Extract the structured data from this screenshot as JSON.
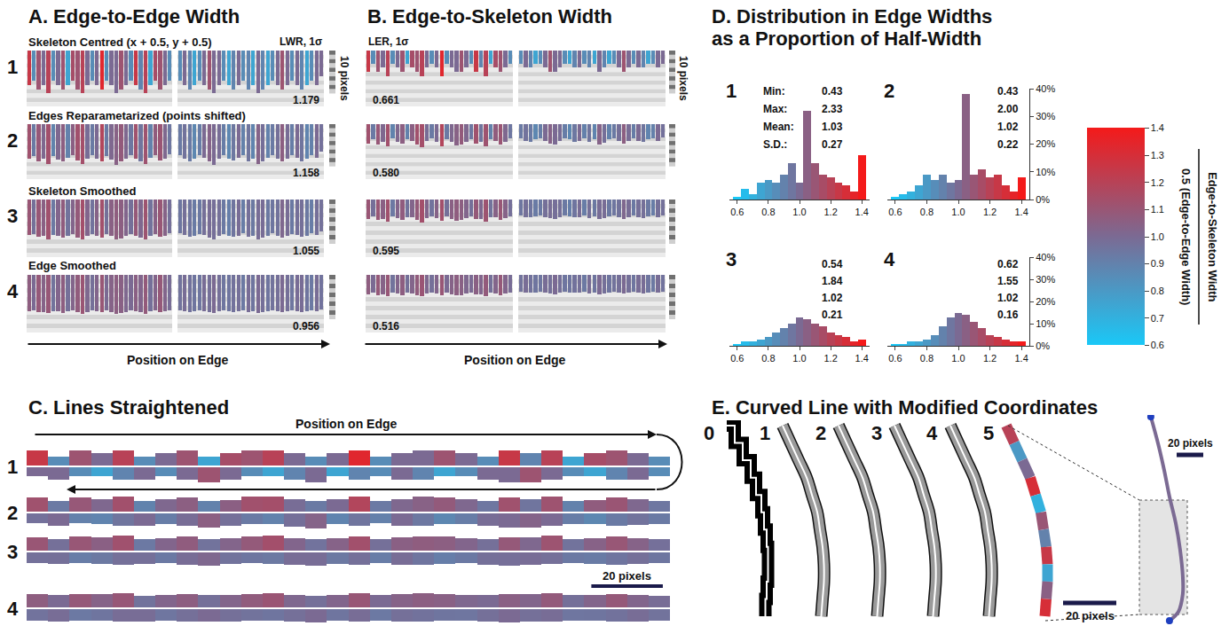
{
  "chart_data": [
    {
      "panel": "A",
      "type": "bar",
      "title": "A. Edge-to-Edge Width",
      "stat_label": "LWR, 1σ",
      "x_label": "Position on Edge",
      "position_step": 6,
      "xlim": [
        0,
        180
      ],
      "ylim": [
        13,
        0
      ],
      "yticks": [
        0,
        1,
        2,
        3,
        4,
        5,
        6,
        7,
        8,
        9,
        10,
        11,
        12,
        13
      ],
      "grid": true,
      "tick_labels": false,
      "scale_bar": {
        "length": 10,
        "label": "10 pixels"
      },
      "rows": [
        {
          "number": "1",
          "subtitle": "Skeleton Centred (x + 0.5, y + 0.5)",
          "stat": "1.179",
          "edges": [
            [
              8,
              7,
              9,
              8,
              10,
              7,
              8,
              9,
              8,
              7,
              9,
              10,
              8,
              7,
              8,
              9,
              7,
              8,
              10,
              9,
              8,
              7,
              8,
              9,
              10,
              8,
              7,
              9,
              8,
              7
            ],
            [
              7,
              8,
              9,
              8,
              7,
              8,
              9,
              10,
              8,
              7,
              8,
              9,
              8,
              7,
              9,
              8,
              10,
              9,
              8,
              7,
              8,
              9,
              8,
              7,
              8,
              9,
              8,
              7,
              8,
              6
            ]
          ]
        },
        {
          "number": "2",
          "subtitle": "Edges Reparametarized (points shifted)",
          "stat": "1.158",
          "edges": [
            [
              8.2,
              7.5,
              8.8,
              8.1,
              9.4,
              7.6,
              8.3,
              8.9,
              8.0,
              7.4,
              8.7,
              9.5,
              8.1,
              7.3,
              8.2,
              8.8,
              7.5,
              8.3,
              9.6,
              8.9,
              8.1,
              7.4,
              8.2,
              8.8,
              9.5,
              8.0,
              7.3,
              8.7,
              8.1,
              7.2
            ],
            [
              7.3,
              8.1,
              8.8,
              8.2,
              7.4,
              8.0,
              8.9,
              9.6,
              8.1,
              7.4,
              8.2,
              8.7,
              8.0,
              7.3,
              8.8,
              8.1,
              9.5,
              8.8,
              8.0,
              7.3,
              8.2,
              8.9,
              8.1,
              7.4,
              8.0,
              8.8,
              8.1,
              7.3,
              8.0,
              6.6
            ]
          ]
        },
        {
          "number": "3",
          "subtitle": "Skeleton Smoothed",
          "stat": "1.055",
          "edges": [
            [
              8.0,
              7.8,
              8.4,
              8.2,
              8.9,
              7.9,
              8.2,
              8.6,
              8.1,
              7.8,
              8.5,
              9.0,
              8.2,
              7.7,
              8.1,
              8.5,
              7.8,
              8.2,
              9.0,
              8.7,
              8.2,
              7.8,
              8.1,
              8.5,
              9.0,
              8.1,
              7.7,
              8.4,
              8.1,
              7.6
            ],
            [
              7.6,
              8.0,
              8.4,
              8.2,
              7.7,
              8.0,
              8.5,
              9.0,
              8.2,
              7.7,
              8.1,
              8.4,
              8.1,
              7.6,
              8.4,
              8.1,
              8.9,
              8.5,
              8.1,
              7.6,
              8.1,
              8.5,
              8.1,
              7.7,
              8.0,
              8.4,
              8.1,
              7.6,
              8.0,
              7.2
            ]
          ]
        },
        {
          "number": "4",
          "subtitle": "Edge Smoothed",
          "stat": "0.956",
          "edges": [
            [
              8.1,
              8.0,
              8.3,
              8.3,
              8.6,
              8.1,
              8.2,
              8.5,
              8.2,
              8.0,
              8.4,
              8.7,
              8.3,
              8.0,
              8.2,
              8.4,
              8.0,
              8.3,
              8.7,
              8.6,
              8.3,
              8.0,
              8.2,
              8.4,
              8.7,
              8.2,
              8.0,
              8.3,
              8.2,
              7.9
            ],
            [
              7.9,
              8.1,
              8.3,
              8.2,
              8.0,
              8.1,
              8.4,
              8.6,
              8.2,
              8.0,
              8.2,
              8.3,
              8.2,
              7.9,
              8.3,
              8.2,
              8.6,
              8.4,
              8.2,
              7.9,
              8.2,
              8.4,
              8.2,
              8.0,
              8.1,
              8.3,
              8.2,
              7.9,
              8.1,
              7.7
            ]
          ]
        }
      ]
    },
    {
      "panel": "B",
      "type": "bar",
      "title": "B. Edge-to-Skeleton Width",
      "stat_label": "LER, 1σ",
      "x_label": "Position on Edge",
      "xlim": [
        0,
        180
      ],
      "ylim": [
        13,
        0
      ],
      "yticks": [
        0,
        1,
        2,
        3,
        4,
        5,
        6,
        7,
        8,
        9,
        10,
        11,
        12,
        13
      ],
      "grid": true,
      "tick_labels": false,
      "scale_bar": {
        "length": 10,
        "label": "10 pixels"
      },
      "rows": [
        {
          "stat": "0.661",
          "edges": [
            [
              5,
              3,
              5,
              4,
              6,
              3,
              4,
              5,
              3,
              4,
              5,
              6,
              4,
              3,
              4,
              6,
              3,
              4,
              5,
              5,
              4,
              3,
              5,
              4,
              6,
              3,
              4,
              5,
              4,
              3
            ],
            [
              3,
              4,
              4,
              3,
              3,
              4,
              5,
              5,
              4,
              3,
              3,
              4,
              4,
              3,
              4,
              3,
              5,
              4,
              3,
              3,
              4,
              5,
              4,
              3,
              4,
              4,
              3,
              3,
              4,
              3
            ]
          ]
        },
        {
          "stat": "0.580",
          "edges": [
            [
              4.6,
              3.5,
              4.8,
              4.1,
              5.3,
              3.4,
              4.2,
              4.7,
              3.6,
              3.9,
              4.9,
              5.4,
              4.0,
              3.4,
              4.1,
              5.2,
              3.5,
              4.2,
              5.0,
              4.8,
              4.1,
              3.5,
              4.6,
              4.2,
              5.3,
              3.6,
              3.9,
              4.8,
              4.1,
              3.4
            ],
            [
              3.4,
              3.9,
              4.1,
              3.6,
              3.4,
              4.0,
              4.6,
              4.8,
              4.0,
              3.4,
              3.6,
              4.1,
              4.0,
              3.3,
              4.2,
              3.6,
              4.9,
              4.3,
              3.6,
              3.4,
              4.0,
              4.7,
              4.0,
              3.4,
              4.0,
              4.2,
              3.6,
              3.3,
              4.0,
              3.2
            ]
          ]
        },
        {
          "stat": "0.595",
          "edges": [
            [
              4.4,
              3.8,
              4.6,
              4.3,
              5.0,
              3.7,
              4.2,
              4.6,
              3.9,
              4.0,
              4.6,
              5.1,
              4.2,
              3.7,
              4.2,
              4.8,
              3.8,
              4.3,
              4.8,
              4.6,
              4.2,
              3.8,
              4.4,
              4.3,
              5.0,
              3.9,
              4.0,
              4.6,
              4.2,
              3.7
            ],
            [
              3.6,
              3.9,
              4.0,
              3.8,
              3.6,
              3.9,
              4.2,
              4.4,
              4.0,
              3.6,
              3.7,
              4.0,
              4.0,
              3.5,
              4.1,
              3.8,
              4.4,
              4.2,
              3.8,
              3.6,
              3.9,
              4.3,
              4.0,
              3.6,
              3.9,
              4.1,
              3.8,
              3.5,
              3.9,
              3.5
            ]
          ]
        },
        {
          "stat": "0.516",
          "edges": [
            [
              4.3,
              4.0,
              4.5,
              4.3,
              4.7,
              3.9,
              4.2,
              4.5,
              4.0,
              4.1,
              4.5,
              4.8,
              4.2,
              3.9,
              4.2,
              4.6,
              4.0,
              4.3,
              4.6,
              4.5,
              4.2,
              4.0,
              4.3,
              4.3,
              4.7,
              4.0,
              4.1,
              4.5,
              4.2,
              3.9
            ],
            [
              3.8,
              4.0,
              4.0,
              3.9,
              3.8,
              4.0,
              4.1,
              4.3,
              4.0,
              3.8,
              3.9,
              4.0,
              4.0,
              3.7,
              4.1,
              3.9,
              4.3,
              4.1,
              3.9,
              3.8,
              4.0,
              4.2,
              4.0,
              3.8,
              4.0,
              4.1,
              3.9,
              3.7,
              4.0,
              3.7
            ]
          ]
        }
      ]
    },
    {
      "panel": "C",
      "type": "bar",
      "title": "C. Lines Straightened",
      "x_label": "Position on Edge",
      "xlim": [
        0,
        180
      ],
      "ylim": [
        0,
        5
      ],
      "tick_labels": false,
      "rows": [
        "1",
        "2",
        "3",
        "4"
      ],
      "scale_bar": {
        "length": 20,
        "label": "20 pixels"
      }
    },
    {
      "panel": "D",
      "type": "histogram",
      "title": [
        "D. Distribution in Edge Widths",
        "as a Proportion of Half-Width"
      ],
      "bins": [
        0.575,
        0.625,
        0.675,
        0.725,
        0.775,
        0.825,
        0.875,
        0.925,
        0.975,
        1.025,
        1.075,
        1.125,
        1.175,
        1.225,
        1.275,
        1.325,
        1.375,
        1.425
      ],
      "xlim": [
        0.55,
        1.45
      ],
      "xticks": [
        0.6,
        0.8,
        {
          "value": 1,
          "label": "1.0"
        },
        1.2,
        1.4
      ],
      "ylim": [
        0,
        40
      ],
      "yticks": [
        {
          "value": 0,
          "label": "0%"
        },
        {
          "value": 10,
          "label": "10%"
        },
        {
          "value": 20,
          "label": "20%"
        },
        {
          "value": 30,
          "label": "30%"
        },
        {
          "value": 40,
          "label": "40%"
        }
      ],
      "stat_labels": [
        "Min:",
        "Max:",
        "Mean:",
        "S.D.:"
      ],
      "histograms": [
        {
          "number": "1",
          "counts": [
            1,
            4,
            2,
            6,
            7,
            6,
            9,
            13,
            6,
            32,
            13,
            9,
            8,
            6,
            5,
            3,
            16
          ],
          "stats": [
            "0.43",
            "2.33",
            "1.03",
            "0.27"
          ]
        },
        {
          "number": "2",
          "counts": [
            1,
            2,
            3,
            5,
            9,
            7,
            9,
            6,
            7,
            38,
            9,
            11,
            8,
            9,
            5,
            3,
            8
          ],
          "stats": [
            "0.43",
            "2.00",
            "1.02",
            "0.22"
          ]
        },
        {
          "number": "3",
          "counts": [
            1,
            2,
            2,
            3,
            4,
            6,
            8,
            10,
            13,
            12,
            10,
            9,
            6,
            5,
            4,
            2,
            3
          ],
          "stats": [
            "0.54",
            "1.84",
            "1.02",
            "0.21"
          ]
        },
        {
          "number": "4",
          "counts": [
            1,
            1,
            2,
            2,
            3,
            5,
            9,
            13,
            15,
            14,
            11,
            8,
            5,
            4,
            3,
            2,
            2
          ],
          "stats": [
            "0.62",
            "1.55",
            "1.02",
            "0.16"
          ]
        }
      ],
      "colorbar": {
        "range": [
          0.6,
          1.4
        ],
        "colors": [
          "#1ac8f7",
          "#7b6a93",
          "#f41a1a"
        ],
        "ticks": [
          0.6,
          0.7,
          0.8,
          0.9,
          {
            "value": 1,
            "label": "1.0"
          },
          1.1,
          1.2,
          1.3,
          1.4
        ],
        "title_numerator": "Edge-to-Skeleton Width",
        "title_denominator": "0.5 (Edge-to-Edge Width)"
      }
    },
    {
      "panel": "E",
      "type": "line",
      "title": "E. Curved Line with Modified Coordinates",
      "xlim": [
        0,
        21
      ],
      "ylim": [
        76.5,
        0
      ],
      "tick_labels": false,
      "curves": [
        {
          "label": "0",
          "line_style": "pixelated"
        },
        {
          "label": "1",
          "line_style": "outlined"
        },
        {
          "label": "2",
          "line_style": "outlined"
        },
        {
          "label": "3",
          "line_style": "outlined"
        },
        {
          "label": "4",
          "line_style": "outlined"
        },
        {
          "label": "5",
          "line_style": "coloured"
        }
      ],
      "centerline": {
        "x": [
          3,
          6,
          9,
          12,
          14,
          16,
          17,
          18,
          18.5,
          18.5,
          18,
          17.5
        ],
        "y": [
          2,
          8.5,
          15,
          21.5,
          28,
          34.5,
          41,
          47.5,
          54,
          60.5,
          67,
          73.5
        ]
      },
      "ratios": [
        1.2,
        0.8,
        1.0,
        1.3,
        0.7,
        1.1,
        0.9,
        1.25,
        0.75,
        1.05,
        1.3
      ],
      "scale_bar": {
        "length": 20,
        "label": "20 pixels"
      },
      "inset": {
        "xlim": [
          0,
          72
        ],
        "ylim": [
          157.3,
          0
        ],
        "x": [
          16.6,
          22,
          26.6,
          30.6,
          35.3,
          38.6,
          40.6,
          40.6,
          37.3,
          30.6
        ],
        "y": [
          1.3,
          21.3,
          41.3,
          61.3,
          81.3,
          101.3,
          121.3,
          134.7,
          148,
          154.7
        ],
        "zoom_box": {
          "x": [
            8,
            44
          ],
          "y": [
            64,
            150
          ]
        },
        "scale_bar": {
          "length": 20,
          "label": "20 pixels"
        }
      }
    }
  ]
}
